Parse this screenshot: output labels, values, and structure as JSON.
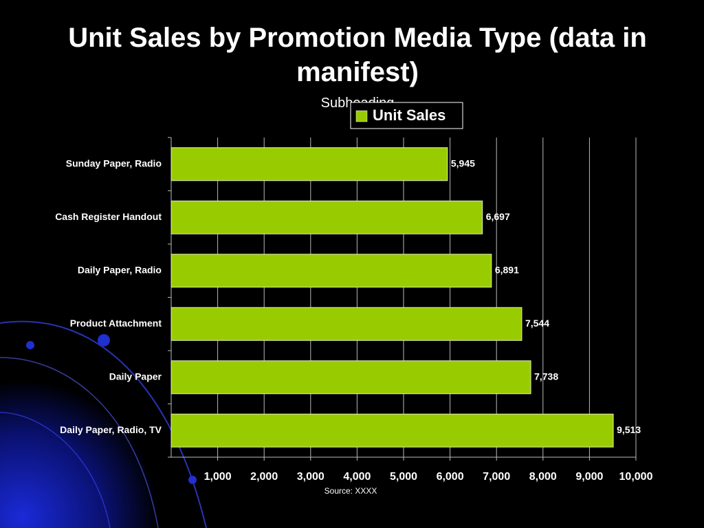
{
  "chart_data": {
    "type": "bar",
    "orientation": "horizontal",
    "title": "Unit Sales by Promotion Media Type (data in manifest)",
    "subtitle": "Subheading",
    "source": "Source:  XXXX",
    "categories": [
      "Sunday Paper, Radio",
      "Cash Register Handout",
      "Daily Paper, Radio",
      "Product Attachment",
      "Daily Paper",
      "Daily Paper, Radio, TV"
    ],
    "series": [
      {
        "name": "Unit Sales",
        "color": "#99cc00",
        "values": [
          5945,
          6697,
          6891,
          7544,
          7738,
          9513
        ],
        "value_labels": [
          "5,945",
          "6,697",
          "6,891",
          "7,544",
          "7,738",
          "9,513"
        ]
      }
    ],
    "xlim": [
      0,
      10000
    ],
    "xticks": [
      {
        "value": 1000,
        "label": "1,000"
      },
      {
        "value": 2000,
        "label": "2,000"
      },
      {
        "value": 3000,
        "label": "3,000"
      },
      {
        "value": 4000,
        "label": "4,000"
      },
      {
        "value": 5000,
        "label": "5,000"
      },
      {
        "value": 6000,
        "label": "6,000"
      },
      {
        "value": 7000,
        "label": "7,000"
      },
      {
        "value": 8000,
        "label": "8,000"
      },
      {
        "value": 9000,
        "label": "9,000"
      },
      {
        "value": 10000,
        "label": "10,000"
      }
    ],
    "grid": true,
    "legend": "top"
  }
}
